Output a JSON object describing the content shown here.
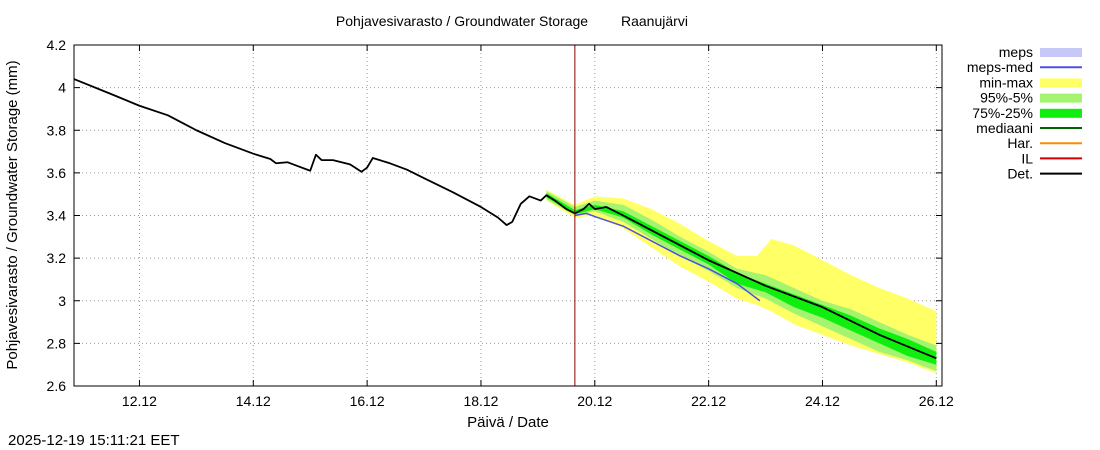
{
  "chart_data": {
    "type": "line",
    "title": "Pohjavesivarasto / Groundwater Storage",
    "station": "Raanujärvi",
    "xlabel": "Päivä / Date",
    "ylabel": "Pohjavesivarasto / Groundwater Storage (mm)",
    "timestamp": "2025-12-19 15:11:21 EET",
    "xlim": [
      10.85,
      26.1
    ],
    "ylim": [
      2.6,
      4.2
    ],
    "grid": true,
    "legend_position": "right",
    "x_ticks": [
      {
        "label": "12.12",
        "value": 12
      },
      {
        "label": "14.12",
        "value": 14
      },
      {
        "label": "16.12",
        "value": 16
      },
      {
        "label": "18.12",
        "value": 18
      },
      {
        "label": "20.12",
        "value": 20
      },
      {
        "label": "22.12",
        "value": 22
      },
      {
        "label": "24.12",
        "value": 24
      },
      {
        "label": "26.12",
        "value": 26
      }
    ],
    "y_ticks": [
      {
        "label": "2.6",
        "value": 2.6
      },
      {
        "label": "2.8",
        "value": 2.8
      },
      {
        "label": "3",
        "value": 3.0
      },
      {
        "label": "3.2",
        "value": 3.2
      },
      {
        "label": "3.4",
        "value": 3.4
      },
      {
        "label": "3.6",
        "value": 3.6
      },
      {
        "label": "3.8",
        "value": 3.8
      },
      {
        "label": "4",
        "value": 4.0
      },
      {
        "label": "4.2",
        "value": 4.2
      }
    ],
    "forecast_start": 19.65,
    "legend": [
      {
        "label": "meps",
        "color": "#c8c8f8",
        "kind": "band"
      },
      {
        "label": "meps-med",
        "color": "#5050e0",
        "kind": "line"
      },
      {
        "label": "min-max",
        "color": "#ffff66",
        "kind": "band"
      },
      {
        "label": "95%-5%",
        "color": "#a4f470",
        "kind": "band"
      },
      {
        "label": "75%-25%",
        "color": "#10ee10",
        "kind": "band"
      },
      {
        "label": "mediaani",
        "color": "#006400",
        "kind": "line"
      },
      {
        "label": "Har.",
        "color": "#ff8c00",
        "kind": "line"
      },
      {
        "label": "IL",
        "color": "#d40000",
        "kind": "line"
      },
      {
        "label": "Det.",
        "color": "#000000",
        "kind": "line"
      }
    ],
    "series": [
      {
        "name": "Det.",
        "color": "#000000",
        "points": [
          [
            10.85,
            4.04
          ],
          [
            11.5,
            3.97
          ],
          [
            12.0,
            3.915
          ],
          [
            12.5,
            3.87
          ],
          [
            13.0,
            3.8
          ],
          [
            13.5,
            3.74
          ],
          [
            14.0,
            3.69
          ],
          [
            14.3,
            3.665
          ],
          [
            14.4,
            3.645
          ],
          [
            14.6,
            3.65
          ],
          [
            14.75,
            3.635
          ],
          [
            15.0,
            3.61
          ],
          [
            15.1,
            3.685
          ],
          [
            15.2,
            3.66
          ],
          [
            15.4,
            3.66
          ],
          [
            15.7,
            3.64
          ],
          [
            15.9,
            3.605
          ],
          [
            16.0,
            3.625
          ],
          [
            16.1,
            3.67
          ],
          [
            16.4,
            3.645
          ],
          [
            16.7,
            3.615
          ],
          [
            17.0,
            3.575
          ],
          [
            17.5,
            3.51
          ],
          [
            18.0,
            3.44
          ],
          [
            18.3,
            3.39
          ],
          [
            18.45,
            3.355
          ],
          [
            18.55,
            3.37
          ],
          [
            18.7,
            3.455
          ],
          [
            18.85,
            3.49
          ],
          [
            18.95,
            3.48
          ],
          [
            19.05,
            3.47
          ],
          [
            19.15,
            3.495
          ],
          [
            19.3,
            3.47
          ],
          [
            19.5,
            3.43
          ],
          [
            19.65,
            3.41
          ],
          [
            19.8,
            3.43
          ],
          [
            19.9,
            3.455
          ],
          [
            20.0,
            3.43
          ],
          [
            20.2,
            3.44
          ],
          [
            20.5,
            3.4
          ],
          [
            21.0,
            3.33
          ],
          [
            22.0,
            3.19
          ],
          [
            23.0,
            3.07
          ],
          [
            24.0,
            2.97
          ],
          [
            25.0,
            2.84
          ],
          [
            26.0,
            2.73
          ]
        ]
      },
      {
        "name": "meps-med",
        "color": "#5050e0",
        "points": [
          [
            19.65,
            3.4
          ],
          [
            19.85,
            3.41
          ],
          [
            20.0,
            3.395
          ],
          [
            20.5,
            3.35
          ],
          [
            21.0,
            3.28
          ],
          [
            21.5,
            3.21
          ],
          [
            22.0,
            3.15
          ],
          [
            22.5,
            3.08
          ],
          [
            22.9,
            3.0
          ]
        ]
      }
    ],
    "bands": [
      {
        "name": "min-max",
        "color": "#ffff66",
        "x": [
          19.15,
          19.65,
          20.0,
          20.5,
          21.0,
          21.5,
          22.0,
          22.5,
          22.85,
          23.1,
          23.5,
          24.0,
          24.5,
          25.0,
          25.5,
          26.0
        ],
        "upper": [
          3.52,
          3.45,
          3.49,
          3.48,
          3.43,
          3.36,
          3.28,
          3.21,
          3.21,
          3.29,
          3.26,
          3.19,
          3.12,
          3.06,
          3.01,
          2.95
        ],
        "lower": [
          3.47,
          3.39,
          3.4,
          3.34,
          3.25,
          3.16,
          3.09,
          3.01,
          2.98,
          2.95,
          2.89,
          2.84,
          2.79,
          2.75,
          2.71,
          2.66
        ]
      },
      {
        "name": "95%-5%",
        "color": "#a4f470",
        "x": [
          19.15,
          19.65,
          20.0,
          20.5,
          21.0,
          21.5,
          22.0,
          22.5,
          23.0,
          23.5,
          24.0,
          24.5,
          25.0,
          25.5,
          26.0
        ],
        "upper": [
          3.515,
          3.44,
          3.47,
          3.45,
          3.38,
          3.3,
          3.23,
          3.15,
          3.12,
          3.06,
          3.0,
          2.96,
          2.9,
          2.84,
          2.79
        ],
        "lower": [
          3.475,
          3.4,
          3.42,
          3.37,
          3.29,
          3.21,
          3.14,
          3.06,
          3.01,
          2.94,
          2.88,
          2.82,
          2.76,
          2.72,
          2.67
        ]
      },
      {
        "name": "75%-25%",
        "color": "#10ee10",
        "x": [
          19.15,
          19.65,
          20.0,
          20.5,
          21.0,
          21.5,
          22.0,
          22.5,
          23.0,
          23.5,
          24.0,
          24.5,
          25.0,
          25.5,
          26.0
        ],
        "upper": [
          3.505,
          3.425,
          3.45,
          3.42,
          3.35,
          3.28,
          3.21,
          3.13,
          3.08,
          3.03,
          2.98,
          2.93,
          2.87,
          2.82,
          2.76
        ],
        "lower": [
          3.485,
          3.405,
          3.43,
          3.39,
          3.31,
          3.24,
          3.17,
          3.08,
          3.04,
          2.97,
          2.92,
          2.86,
          2.8,
          2.74,
          2.7
        ]
      }
    ]
  }
}
